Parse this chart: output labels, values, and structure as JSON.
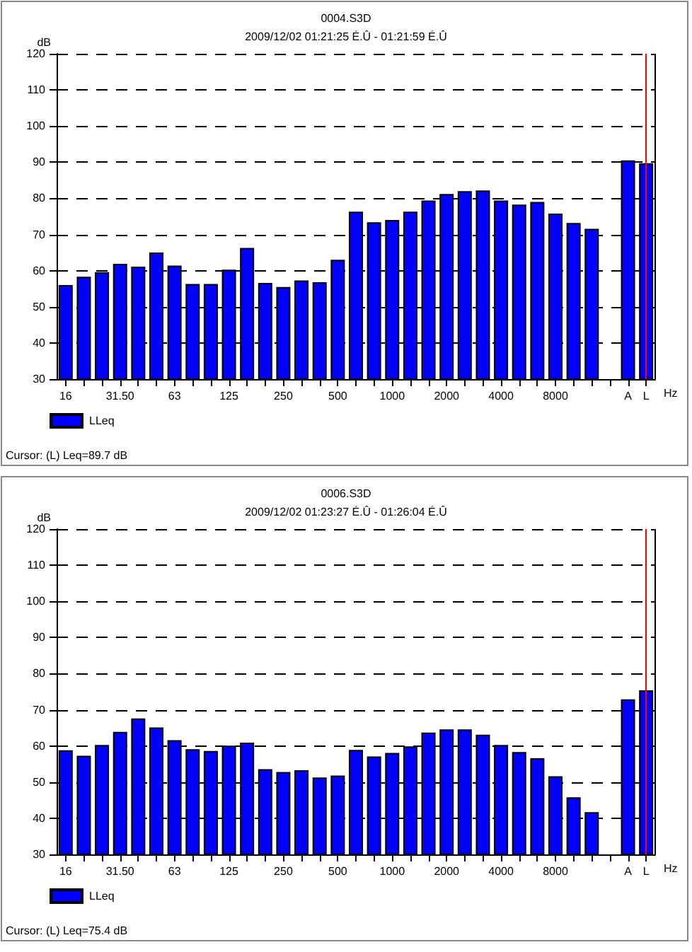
{
  "chart_data": [
    {
      "type": "bar",
      "title": "0004.S3D",
      "subtitle": "2009/12/02 01:21:25 É.Û - 01:21:59 É.Û",
      "ylabel": "dB",
      "xlabel": "Hz",
      "categories": [
        "16",
        null,
        null,
        "31.50",
        null,
        null,
        "63",
        null,
        null,
        "125",
        null,
        null,
        "250",
        null,
        null,
        "500",
        null,
        null,
        "1000",
        null,
        null,
        "2000",
        null,
        null,
        "4000",
        null,
        null,
        "8000",
        null,
        null,
        null,
        "A",
        "L"
      ],
      "series": [
        {
          "name": "LLeq",
          "color": "#0000ff",
          "values": [
            56,
            58.3,
            59.6,
            61.9,
            61.1,
            65,
            61.4,
            56.3,
            56.3,
            60.3,
            66.3,
            56.6,
            55.5,
            57.3,
            56.8,
            63,
            76.3,
            73.4,
            74,
            76.3,
            79.4,
            81.2,
            82,
            82.2,
            79.4,
            78.3,
            79,
            75.8,
            73.2,
            71.6,
            null,
            90.5,
            89.7
          ]
        }
      ],
      "ylim": [
        30,
        120
      ],
      "yticks": [
        30,
        40,
        50,
        60,
        70,
        80,
        90,
        100,
        110,
        120
      ],
      "grid": "y",
      "legend": "bottom left",
      "ref_lines": [
        {
          "axis": "x",
          "value": "L",
          "color": "#ff0000"
        }
      ],
      "annotations": [
        "Cursor: (L) Leq=89.7 dB"
      ]
    },
    {
      "type": "bar",
      "title": "0006.S3D",
      "subtitle": "2009/12/02 01:23:27 É.Û - 01:26:04 É.Û",
      "ylabel": "dB",
      "xlabel": "Hz",
      "categories": [
        "16",
        null,
        null,
        "31.50",
        null,
        null,
        "63",
        null,
        null,
        "125",
        null,
        null,
        "250",
        null,
        null,
        "500",
        null,
        null,
        "1000",
        null,
        null,
        "2000",
        null,
        null,
        "4000",
        null,
        null,
        "8000",
        null,
        null,
        null,
        "A",
        "L"
      ],
      "series": [
        {
          "name": "LLeq",
          "color": "#0000ff",
          "values": [
            58.8,
            57.3,
            60.3,
            63.9,
            67.6,
            65.1,
            61.6,
            59.1,
            58.6,
            60.1,
            60.9,
            53.6,
            52.8,
            53.3,
            51.3,
            51.8,
            58.9,
            57.1,
            58.1,
            59.9,
            63.7,
            64.6,
            64.6,
            63.1,
            60.3,
            58.3,
            56.6,
            51.6,
            45.8,
            41.7,
            null,
            72.9,
            75.4
          ]
        }
      ],
      "ylim": [
        30,
        120
      ],
      "yticks": [
        30,
        40,
        50,
        60,
        70,
        80,
        90,
        100,
        110,
        120
      ],
      "grid": "y",
      "legend": "bottom left",
      "ref_lines": [
        {
          "axis": "x",
          "value": "L",
          "color": "#ff0000"
        }
      ],
      "annotations": [
        "Cursor: (L) Leq=75.4 dB"
      ]
    }
  ]
}
